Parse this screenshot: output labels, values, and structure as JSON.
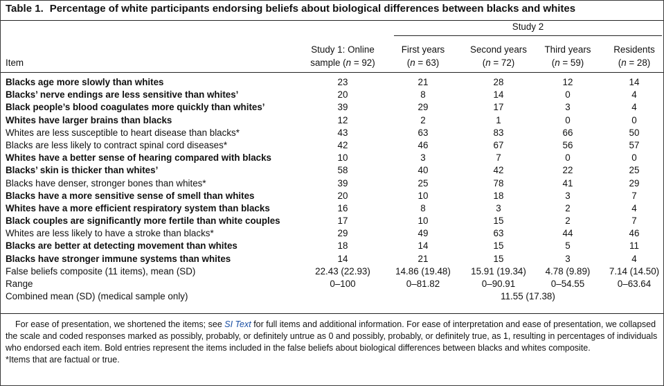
{
  "caption": {
    "number": "Table 1.",
    "title": "Percentage of white participants endorsing beliefs about biological differences between blacks and whites"
  },
  "header": {
    "item": "Item",
    "study2": "Study 2",
    "columns": [
      {
        "line1": "Study 1: Online",
        "line2_pre": "sample (",
        "n": "n",
        "line2_post": " = 92)"
      },
      {
        "line1": "First years",
        "line2_pre": "(",
        "n": "n",
        "line2_post": " = 63)"
      },
      {
        "line1": "Second years",
        "line2_pre": "(",
        "n": "n",
        "line2_post": " = 72)"
      },
      {
        "line1": "Third years",
        "line2_pre": "(",
        "n": "n",
        "line2_post": " = 59)"
      },
      {
        "line1": "Residents",
        "line2_pre": "(",
        "n": "n",
        "line2_post": " = 28)"
      }
    ]
  },
  "rows": [
    {
      "item": "Blacks age more slowly than whites",
      "bold": true,
      "values": [
        "23",
        "21",
        "28",
        "12",
        "14"
      ]
    },
    {
      "item": "Blacks’ nerve endings are less sensitive than whites’",
      "bold": true,
      "values": [
        "20",
        "8",
        "14",
        "0",
        "4"
      ]
    },
    {
      "item": "Black people’s blood coagulates more quickly than whites’",
      "bold": true,
      "values": [
        "39",
        "29",
        "17",
        "3",
        "4"
      ]
    },
    {
      "item": "Whites have larger brains than blacks",
      "bold": true,
      "values": [
        "12",
        "2",
        "1",
        "0",
        "0"
      ]
    },
    {
      "item": "Whites are less susceptible to heart disease than blacks*",
      "bold": false,
      "values": [
        "43",
        "63",
        "83",
        "66",
        "50"
      ]
    },
    {
      "item": "Blacks are less likely to contract spinal cord diseases*",
      "bold": false,
      "values": [
        "42",
        "46",
        "67",
        "56",
        "57"
      ]
    },
    {
      "item": "Whites have a better sense of hearing compared with blacks",
      "bold": true,
      "values": [
        "10",
        "3",
        "7",
        "0",
        "0"
      ]
    },
    {
      "item": "Blacks’ skin is thicker than whites’",
      "bold": true,
      "values": [
        "58",
        "40",
        "42",
        "22",
        "25"
      ]
    },
    {
      "item": "Blacks have denser, stronger bones than whites*",
      "bold": false,
      "values": [
        "39",
        "25",
        "78",
        "41",
        "29"
      ]
    },
    {
      "item": "Blacks have a more sensitive sense of smell than whites",
      "bold": true,
      "values": [
        "20",
        "10",
        "18",
        "3",
        "7"
      ]
    },
    {
      "item": "Whites have a more efficient respiratory system than blacks",
      "bold": true,
      "values": [
        "16",
        "8",
        "3",
        "2",
        "4"
      ]
    },
    {
      "item": "Black couples are significantly more fertile than white couples",
      "bold": true,
      "values": [
        "17",
        "10",
        "15",
        "2",
        "7"
      ]
    },
    {
      "item": "Whites are less likely to have a stroke than blacks*",
      "bold": false,
      "values": [
        "29",
        "49",
        "63",
        "44",
        "46"
      ]
    },
    {
      "item": "Blacks are better at detecting movement than whites",
      "bold": true,
      "values": [
        "18",
        "14",
        "15",
        "5",
        "11"
      ]
    },
    {
      "item": "Blacks have stronger immune systems than whites",
      "bold": true,
      "values": [
        "14",
        "21",
        "15",
        "3",
        "4"
      ]
    },
    {
      "item": "False beliefs composite (11 items), mean (SD)",
      "bold": false,
      "values": [
        "22.43 (22.93)",
        "14.86 (19.48)",
        "15.91 (19.34)",
        "4.78 (9.89)",
        "7.14 (14.50)"
      ]
    },
    {
      "item": "Range",
      "bold": false,
      "values": [
        "0–100",
        "0–81.82",
        "0–90.91",
        "0–54.55",
        "0–63.64"
      ]
    }
  ],
  "combined": {
    "item": "Combined mean (SD) (medical sample only)",
    "value": "11.55 (17.38)"
  },
  "footnote": {
    "main_pre": "For ease of presentation, we shortened the items; see ",
    "link": "SI Text",
    "main_post": " for full items and additional information. For ease of interpretation and ease of presentation, we collapsed the scale and coded responses marked as possibly, probably, or definitely untrue as 0 and possibly, probably, or definitely true, as 1, resulting in percentages of individuals who endorsed each item. Bold entries represent the items included in the false beliefs about biological differences between blacks and whites composite.",
    "asterisk": "*Items that are factual or true."
  }
}
